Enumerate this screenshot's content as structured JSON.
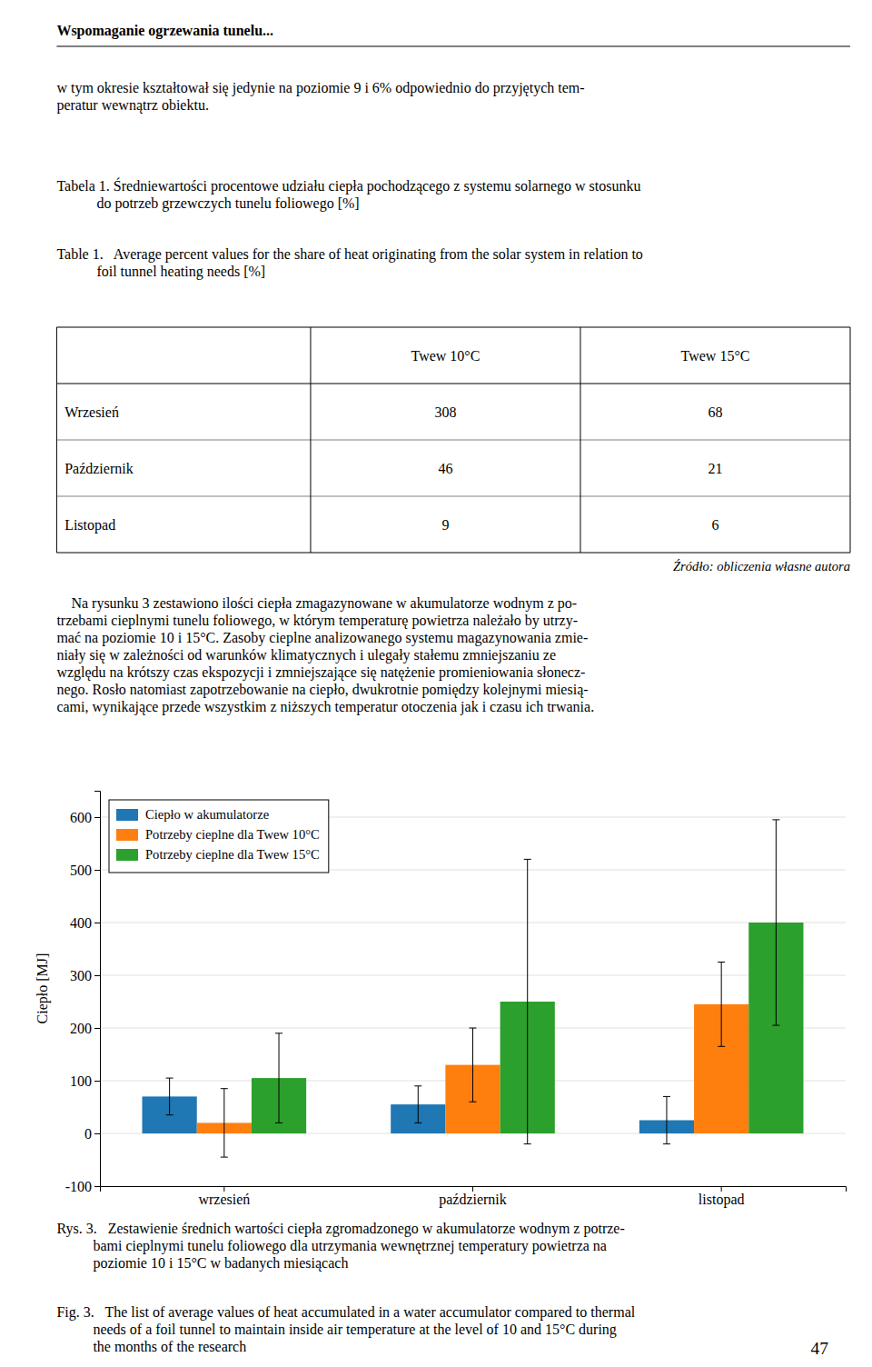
{
  "chart_data": {
    "type": "bar",
    "categories": [
      "wrzesień",
      "październik",
      "listopad"
    ],
    "series": [
      {
        "name": "Ciepło w akumulatorze",
        "values": [
          70,
          55,
          25
        ],
        "errors": [
          35,
          35,
          45
        ]
      },
      {
        "name": "Potrzeby cieplne dla Twew 10°C",
        "values": [
          20,
          130,
          245
        ],
        "errors": [
          65,
          70,
          80
        ]
      },
      {
        "name": "Potrzeby cieplne dla Twew 15°C",
        "values": [
          105,
          250,
          400
        ],
        "errors": [
          85,
          270,
          195
        ]
      }
    ],
    "ylabel": "Ciepło [MJ]",
    "ylim": [
      -100,
      650
    ],
    "yticks": [
      -100,
      0,
      100,
      200,
      300,
      400,
      500,
      600
    ],
    "grid": true,
    "legend": "top-left"
  },
  "page": {
    "title": "Wspomaganie ogrzewania tunelu...",
    "paragraph_1": [
      "w tym okresie kształtował się jedynie na poziomie 9 i 6% odpowiednio do przyjętych tem-",
      "peratur wewnątrz obiektu."
    ],
    "table_caption_pl": [
      "Tabela 1. Średniewartości procentowe udziału ciepła pochodzącego z systemu solarnego w stosunku",
      "           do potrzeb grzewczych tunelu foliowego [%]"
    ],
    "table_caption_en": [
      "Table 1.   Average percent values for the share of heat originating from the solar system in relation to",
      "           foil tunnel heating needs [%]"
    ],
    "table": {
      "columns": [
        "Twew 10°C",
        "Twew 15°C"
      ],
      "rows": [
        {
          "label": "Wrzesień",
          "values": [
            308,
            68
          ]
        },
        {
          "label": "Październik",
          "values": [
            46,
            21
          ]
        },
        {
          "label": "Listopad",
          "values": [
            9,
            6
          ]
        }
      ]
    },
    "source_note": "Źródło: obliczenia własne autora",
    "paragraph_2": [
      "    Na rysunku 3 zestawiono ilości ciepła zmagazynowane w akumulatorze wodnym z po-",
      "trzebami cieplnymi tunelu foliowego, w którym temperaturę powietrza należało by utrzy-",
      "mać na poziomie 10 i 15°C. Zasoby cieplne analizowanego systemu magazynowania zmie-",
      "niały się w zależności od warunków klimatycznych i ulegały stałemu zmniejszaniu ze",
      "względu na krótszy czas ekspozycji i zmniejszające się natężenie promieniowania słonecz-",
      "nego. Rosło natomiast zapotrzebowanie na ciepło, dwukrotnie pomiędzy kolejnymi miesią-",
      "cami, wynikające przede wszystkim z niższych temperatur otoczenia jak i czasu ich trwania."
    ],
    "figure_caption_pl": [
      "Rys. 3.   Zestawienie średnich wartości ciepła zgromadzonego w akumulatorze wodnym z potrze-",
      "          bami cieplnymi tunelu foliowego dla utrzymania wewnętrznej temperatury powietrza na",
      "          poziomie 10 i 15°C w badanych miesiącach"
    ],
    "figure_caption_en": [
      "Fig. 3.   The list of average values of heat accumulated in a water accumulator compared to thermal",
      "          needs of a foil tunnel to maintain inside air temperature at the level of 10 and 15°C during",
      "          the months of the research"
    ],
    "page_number": "47"
  }
}
